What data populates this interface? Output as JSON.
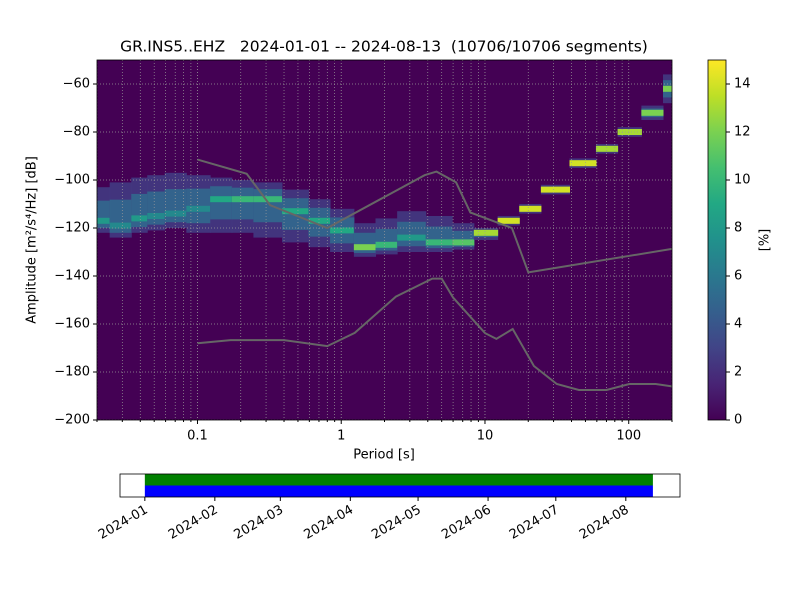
{
  "chart_data": [
    {
      "type": "ppsd",
      "title": "GR.INS5..EHZ   2024-01-01 -- 2024-08-13  (10706/10706 segments)",
      "xlabel": "Period [s]",
      "ylabel": "Amplitude [m²/s⁴/Hz] [dB]",
      "xscale": "log",
      "xlim": [
        0.02,
        200
      ],
      "ylim": [
        -200,
        -50
      ],
      "xticks": [
        0.1,
        1,
        10,
        100
      ],
      "xminorticks": [
        0.02,
        0.03,
        0.04,
        0.05,
        0.06,
        0.07,
        0.08,
        0.09,
        0.2,
        0.3,
        0.4,
        0.5,
        0.6,
        0.7,
        0.8,
        0.9,
        2,
        3,
        4,
        5,
        6,
        7,
        8,
        9,
        20,
        30,
        40,
        50,
        60,
        70,
        80,
        90,
        200
      ],
      "yticks": [
        {
          "value": -200,
          "label": "−200"
        },
        {
          "value": -180,
          "label": "−180"
        },
        {
          "value": -160,
          "label": "−160"
        },
        {
          "value": -140,
          "label": "−140"
        },
        {
          "value": -120,
          "label": "−120"
        },
        {
          "value": -100,
          "label": "−100"
        },
        {
          "value": -80,
          "label": "−80"
        },
        {
          "value": -60,
          "label": "−60"
        }
      ],
      "grid": true,
      "background": "#440154",
      "density": {
        "x": [
          0.02,
          0.03,
          0.04,
          0.05,
          0.07,
          0.1,
          0.15,
          0.2,
          0.3,
          0.5,
          0.7,
          1,
          1.5,
          2,
          3,
          5,
          7,
          10,
          15,
          20,
          30,
          50,
          70,
          100,
          150,
          200
        ],
        "center": [
          -117,
          -119,
          -116,
          -115,
          -114,
          -112,
          -108,
          -108,
          -108,
          -113,
          -117,
          -121,
          -128,
          -127,
          -124,
          -126,
          -126,
          -122,
          -117,
          -112,
          -104,
          -93,
          -87,
          -80,
          -72,
          -62
        ],
        "top": [
          -103,
          -101,
          -99,
          -98,
          -97,
          -98,
          -99,
          -100,
          -101,
          -104,
          -108,
          -112,
          -118,
          -116,
          -113,
          -115,
          -118,
          -120,
          -115,
          -110,
          -102,
          -91,
          -85,
          -78,
          -69,
          -56
        ],
        "bottom": [
          -122,
          -124,
          -122,
          -121,
          -120,
          -122,
          -122,
          -122,
          -124,
          -126,
          -128,
          -130,
          -132,
          -131,
          -130,
          -130,
          -129,
          -125,
          -119,
          -114,
          -106,
          -95,
          -89,
          -82,
          -75,
          -68
        ],
        "peak": [
          8,
          7,
          8,
          7,
          7,
          7,
          9,
          10,
          10,
          9,
          9,
          9,
          12,
          10,
          8,
          10,
          11,
          13,
          14,
          14,
          14,
          14,
          13,
          13,
          12,
          12
        ]
      },
      "lines": [
        {
          "color": "#666666",
          "x": [
            0.1,
            0.22,
            0.32,
            0.8,
            3.8,
            4.6,
            6.3,
            7.9,
            15.4,
            20,
            200
          ],
          "y": [
            -91.5,
            -97.4,
            -110.5,
            -120,
            -98,
            -96.5,
            -101,
            -113.5,
            -120,
            -138.5,
            -128.7
          ]
        },
        {
          "color": "#666666",
          "x": [
            0.1,
            0.17,
            0.4,
            0.8,
            1.24,
            2.4,
            4.3,
            5,
            6,
            10,
            12,
            15.6,
            21.9,
            31.6,
            45,
            70,
            101,
            154,
            200
          ],
          "y": [
            -168,
            -166.7,
            -166.7,
            -169.2,
            -163.7,
            -148.6,
            -141.1,
            -141.1,
            -149,
            -163.8,
            -166.2,
            -162.1,
            -177.5,
            -185,
            -187.5,
            -187.5,
            -185,
            -185,
            -186
          ]
        }
      ],
      "colorbar": {
        "label": "[%]",
        "lim": [
          0,
          15
        ],
        "ticks": [
          0,
          2,
          4,
          6,
          8,
          10,
          12,
          14
        ]
      }
    },
    {
      "type": "timeline",
      "xlim": [
        "2023-12-21",
        "2024-08-25"
      ],
      "xticks": [
        {
          "value": "2024-01-01",
          "label": "2024-01"
        },
        {
          "value": "2024-02-01",
          "label": "2024-02"
        },
        {
          "value": "2024-03-01",
          "label": "2024-03"
        },
        {
          "value": "2024-04-01",
          "label": "2024-04"
        },
        {
          "value": "2024-05-01",
          "label": "2024-05"
        },
        {
          "value": "2024-06-01",
          "label": "2024-06"
        },
        {
          "value": "2024-07-01",
          "label": "2024-07"
        },
        {
          "value": "2024-08-01",
          "label": "2024-08"
        }
      ],
      "bars": [
        {
          "color": "#008000",
          "start": "2024-01-01",
          "end": "2024-08-13"
        },
        {
          "color": "#0000ff",
          "start": "2024-01-01",
          "end": "2024-08-13"
        }
      ]
    }
  ]
}
